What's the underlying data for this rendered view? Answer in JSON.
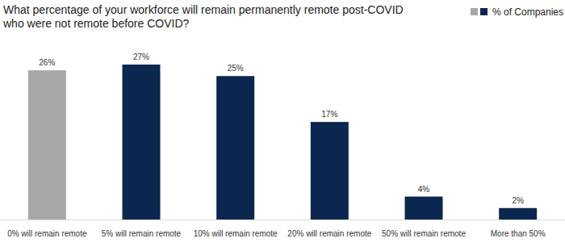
{
  "chart_data": {
    "type": "bar",
    "title": "What percentage of your workforce will remain permanently remote post-COVID who were not remote before COVID?",
    "categories": [
      "0% will remain remote",
      "5% will remain remote",
      "10% will remain remote",
      "20% will remain remote",
      "50% will remain remote",
      "More than 50%"
    ],
    "series": [
      {
        "name": "% of Companies",
        "values": [
          26,
          27,
          25,
          17,
          4,
          2
        ],
        "value_labels": [
          "26%",
          "27%",
          "25%",
          "17%",
          "4%",
          "2%"
        ],
        "colors": [
          "#a5a8a7",
          "#0b2750",
          "#0b2750",
          "#0b2750",
          "#0b2750",
          "#0b2750"
        ]
      }
    ],
    "ylim": [
      0,
      27
    ],
    "data_labels": true,
    "tick_labels": "x",
    "legend": "top-right"
  }
}
